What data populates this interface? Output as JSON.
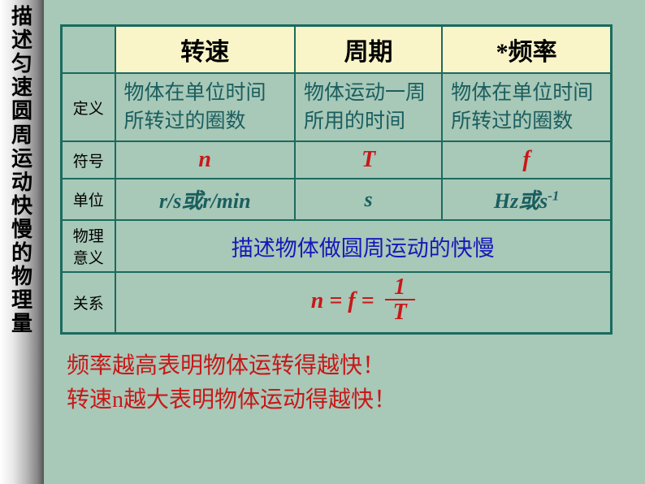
{
  "sidebar": {
    "title": "描述匀速圆周运动快慢的物理量"
  },
  "table": {
    "headers": [
      "转速",
      "周期",
      "*频率"
    ],
    "rows": {
      "definition": {
        "label": "定义",
        "cells": [
          "物体在单位时间所转过的圈数",
          "物体运动一周所用的时间",
          "物体在单位时间所转过的圈数"
        ]
      },
      "symbol": {
        "label": "符号",
        "cells": [
          "n",
          "T",
          "f"
        ]
      },
      "unit": {
        "label": "单位",
        "cells": [
          "r/s或r/min",
          "s",
          "Hz或s"
        ]
      },
      "meaning": {
        "label": "物理意义",
        "text": "描述物体做圆周运动的快慢"
      },
      "relation": {
        "label": "关系",
        "lhs": "n = f = ",
        "num": "1",
        "den": "T"
      }
    }
  },
  "notes": {
    "line1": "频率越高表明物体运转得越快！",
    "line2": "转速n越大表明物体运动得越快！"
  },
  "colors": {
    "background": "#a8c8b8",
    "border": "#1a6b5e",
    "header_bg": "#faf5c8",
    "def_text": "#1a5e5e",
    "symbol_text": "#c81818",
    "meaning_text": "#1818b8",
    "note_text": "#c81818"
  }
}
